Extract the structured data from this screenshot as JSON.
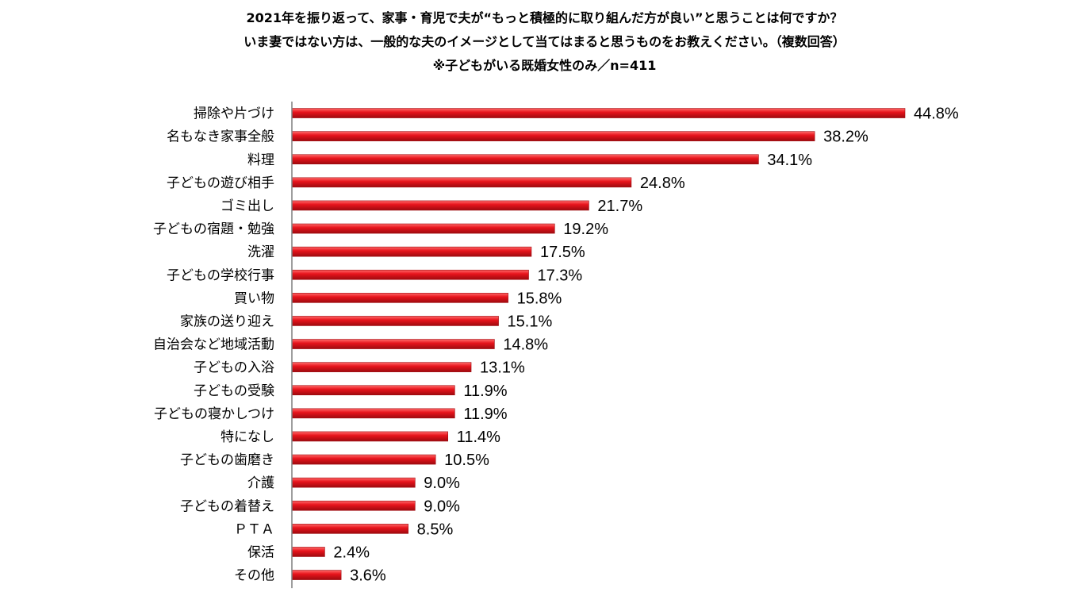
{
  "title_lines": [
    "2021年を振り返って、家事・育児で夫が“もっと積極的に取り組んだ方が良い”と思うことは何ですか？",
    "いま妻ではない方は、一般的な夫のイメージとして当てはまると思うものをお教えください。（複数回答）",
    "※子どもがいる既婚女性のみ／n=411"
  ],
  "chart_data": {
    "type": "bar",
    "orientation": "horizontal",
    "title": "2021年を振り返って、家事・育児で夫が“もっと積極的に取り組んだ方が良い”と思うことは何ですか？ いま妻ではない方は、一般的な夫のイメージとして当てはまると思うものをお教えください。（複数回答） ※子どもがいる既婚女性のみ／n=411",
    "categories": [
      "掃除や片づけ",
      "名もなき家事全般",
      "料理",
      "子どもの遊び相手",
      "ゴミ出し",
      "子どもの宿題・勉強",
      "洗濯",
      "子どもの学校行事",
      "買い物",
      "家族の送り迎え",
      "自治会など地域活動",
      "子どもの入浴",
      "子どもの受験",
      "子どもの寝かしつけ",
      "特になし",
      "子どもの歯磨き",
      "介護",
      "子どもの着替え",
      "ＰＴＡ",
      "保活",
      "その他"
    ],
    "values": [
      44.8,
      38.2,
      34.1,
      24.8,
      21.7,
      19.2,
      17.5,
      17.3,
      15.8,
      15.1,
      14.8,
      13.1,
      11.9,
      11.9,
      11.4,
      10.5,
      9.0,
      9.0,
      8.5,
      2.4,
      3.6
    ],
    "value_labels": [
      "44.8%",
      "38.2%",
      "34.1%",
      "24.8%",
      "21.7%",
      "19.2%",
      "17.5%",
      "17.3%",
      "15.8%",
      "15.1%",
      "14.8%",
      "13.1%",
      "11.9%",
      "11.9%",
      "11.4%",
      "10.5%",
      "9.0%",
      "9.0%",
      "8.5%",
      "2.4%",
      "3.6%"
    ],
    "unit": "%",
    "xlim": [
      0,
      45
    ],
    "grid": false,
    "legend": "none",
    "bar_color": "#e8141c",
    "bar_highlight_color": "#ff6b6b",
    "bar_shadow_color": "#9e0a0f"
  }
}
